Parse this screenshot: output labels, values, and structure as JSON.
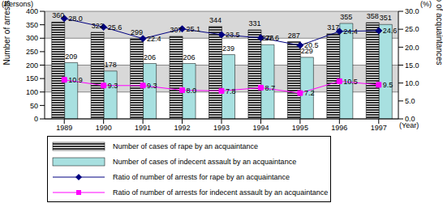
{
  "chart_data": {
    "type": "bar",
    "y_unit": "(Persons)",
    "y_label": "Number of arrests",
    "y2_unit": "(%)",
    "y2_label": "Ratio of acquaintances",
    "x_label": "(Year)",
    "categories": [
      "1989",
      "1990",
      "1991",
      "1992",
      "1993",
      "1994",
      "1995",
      "1996",
      "1997"
    ],
    "ylim": [
      0,
      400
    ],
    "yticks": [
      0,
      50,
      100,
      150,
      200,
      250,
      300,
      350,
      400
    ],
    "y2lim": [
      0,
      30
    ],
    "y2ticks": [
      {
        "value": 0,
        "label": "0.0"
      },
      {
        "value": 5,
        "label": "5.0"
      },
      {
        "value": 10,
        "label": "10.0"
      },
      {
        "value": 15,
        "label": "15.0"
      },
      {
        "value": 20,
        "label": "20.0"
      },
      {
        "value": 25,
        "label": "25.0"
      },
      {
        "value": 30,
        "label": "30.0"
      }
    ],
    "grid": true,
    "legend": "bottom",
    "data_labels": true,
    "series": [
      {
        "name": "Number of cases of rape by an acquaintance",
        "type": "bar",
        "color": "#000000",
        "marker": "hatch",
        "values": [
          360,
          322,
          299,
          307,
          344,
          331,
          287,
          317,
          358
        ]
      },
      {
        "name": "Number of cases of indecent assault by an acquaintance",
        "type": "bar",
        "color": "#a8e0e0",
        "values": [
          209,
          178,
          206,
          206,
          239,
          276,
          229,
          355,
          351
        ]
      },
      {
        "name": "Ratio of number of arrests for rape by an acquaintance",
        "type": "line",
        "axis": "y2",
        "color": "#000080",
        "marker": "diamond",
        "values": [
          28.0,
          25.6,
          22.4,
          25.1,
          23.5,
          22.6,
          20.5,
          24.4,
          24.6
        ],
        "value_labels": [
          "28.0",
          "25.6",
          "22.4",
          "25.1",
          "23.5",
          "22.6",
          "20.5",
          "24.4",
          "24.6"
        ]
      },
      {
        "name": "Ratio of number of arrests for indecent assault by an acquaintance",
        "type": "line",
        "axis": "y2",
        "color": "#ff00ff",
        "marker": "square",
        "values": [
          10.9,
          9.3,
          9.3,
          8.0,
          7.8,
          8.7,
          7.2,
          10.5,
          9.5
        ],
        "value_labels": [
          "10.9",
          "9.3",
          "9.3",
          "8.0",
          "7.8",
          "8.7",
          "7.2",
          "10.5",
          "9.5"
        ]
      }
    ]
  }
}
